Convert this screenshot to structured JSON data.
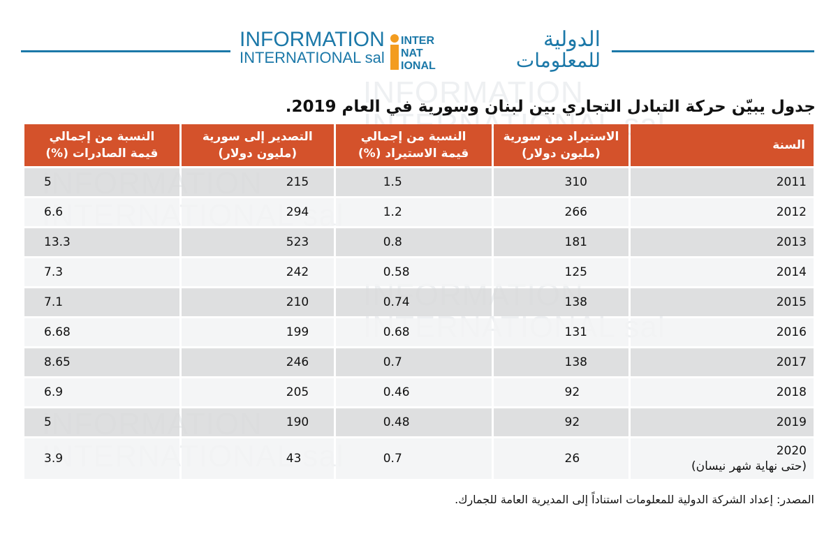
{
  "logo": {
    "en_line1": "INFORMATION",
    "en_line2": "INTERNATIONAL sal",
    "mark_lines": [
      "INTER",
      "NAT",
      "IONAL"
    ],
    "ar_line1": "الدولية",
    "ar_line2": "للمعلومات",
    "brand_blue": "#1b78a8",
    "brand_orange": "#f39c1f"
  },
  "title": "جدول يبيّن حركة التبادل التجاري بين لبنان وسورية في العام 2019.",
  "table": {
    "headers": {
      "year": "السنة",
      "imports_line1": "الاستيراد من سورية",
      "imports_line2": "(مليون دولار)",
      "imports_pct_line1": "النسبة من إجمالي",
      "imports_pct_line2": "قيمة الاستيراد (%)",
      "exports_line1": "التصدير إلى سورية",
      "exports_line2": "(مليون دولار)",
      "exports_pct_line1": "النسبة من إجمالي",
      "exports_pct_line2": "قيمة الصادرات (%)"
    },
    "rows": [
      {
        "year": "2011",
        "imports": "310",
        "imports_pct": "1.5",
        "exports": "215",
        "exports_pct": "5"
      },
      {
        "year": "2012",
        "imports": "266",
        "imports_pct": "1.2",
        "exports": "294",
        "exports_pct": "6.6"
      },
      {
        "year": "2013",
        "imports": "181",
        "imports_pct": "0.8",
        "exports": "523",
        "exports_pct": "13.3"
      },
      {
        "year": "2014",
        "imports": "125",
        "imports_pct": "0.58",
        "exports": "242",
        "exports_pct": "7.3"
      },
      {
        "year": "2015",
        "imports": "138",
        "imports_pct": "0.74",
        "exports": "210",
        "exports_pct": "7.1"
      },
      {
        "year": "2016",
        "imports": "131",
        "imports_pct": "0.68",
        "exports": "199",
        "exports_pct": "6.68"
      },
      {
        "year": "2017",
        "imports": "138",
        "imports_pct": "0.7",
        "exports": "246",
        "exports_pct": "8.65"
      },
      {
        "year": "2018",
        "imports": "92",
        "imports_pct": "0.46",
        "exports": "205",
        "exports_pct": "6.9"
      },
      {
        "year": "2019",
        "imports": "92",
        "imports_pct": "0.48",
        "exports": "190",
        "exports_pct": "5"
      },
      {
        "year": "2020",
        "year_note": "(حتى نهاية شهر نيسان)",
        "imports": "26",
        "imports_pct": "0.7",
        "exports": "43",
        "exports_pct": "3.9"
      }
    ],
    "header_color": "#d4522b"
  },
  "source": "المصدر: إعداد الشركة الدولية للمعلومات استناداً إلى المديرية العامة للجمارك."
}
